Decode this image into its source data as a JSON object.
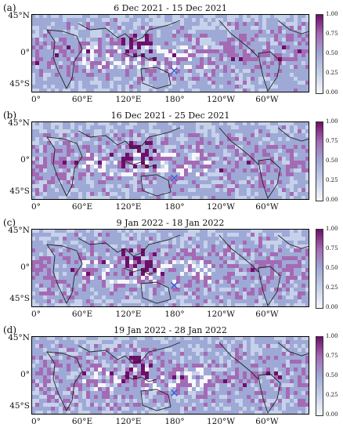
{
  "panels": [
    {
      "label": "(a)",
      "title": "6 Dec 2021 - 15 Dec 2021"
    },
    {
      "label": "(b)",
      "title": "16 Dec 2021 - 25 Dec 2021"
    },
    {
      "label": "(c)",
      "title": "9 Jan 2022 - 18 Jan 2022"
    },
    {
      "label": "(d)",
      "title": "19 Jan 2022 - 28 Jan 2022"
    }
  ],
  "lat_ticks": [
    "45°N",
    "0°",
    "45°S"
  ],
  "lon_ticks": [
    "0°",
    "60°E",
    "120°E",
    "180°",
    "120°W",
    "60°W"
  ],
  "colorbar_ticks": [
    "1.00",
    "0.75",
    "0.50",
    "0.25",
    "0.00"
  ],
  "colormap": [
    "#f7f7fb",
    "#c6d2ea",
    "#9fa9d6",
    "#a56ab4",
    "#6e0f6a"
  ],
  "marker": {
    "symbol": "cross",
    "color": "#3b5bd6",
    "lon": 185,
    "lat": -20
  }
}
